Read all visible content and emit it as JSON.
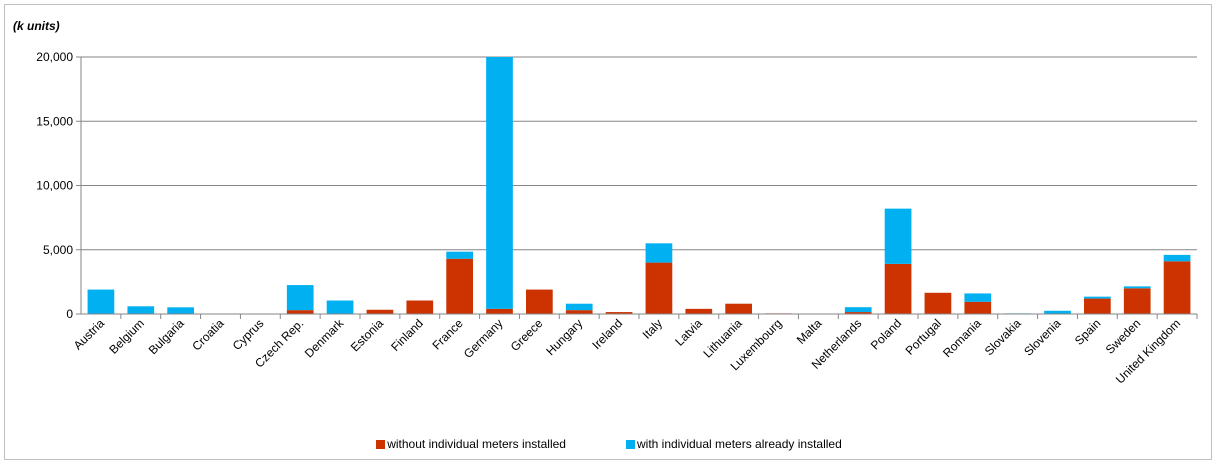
{
  "chart_data": {
    "type": "bar",
    "stacked": true,
    "unit_label": "(k units)",
    "categories": [
      "Austria",
      "Belgium",
      "Bulgaria",
      "Croatia",
      "Cyprus",
      "Czech Rep.",
      "Denmark",
      "Estonia",
      "Finland",
      "France",
      "Germany",
      "Greece",
      "Hungary",
      "Ireland",
      "Italy",
      "Latvia",
      "Lithuania",
      "Luxembourg",
      "Malta",
      "Netherlands",
      "Poland",
      "Portugal",
      "Romania",
      "Slovakia",
      "Slovenia",
      "Spain",
      "Sweden",
      "United Kingdom"
    ],
    "series": [
      {
        "name": "without individual meters installed",
        "color": "#cc3300",
        "values": [
          0,
          0,
          0,
          0,
          40,
          300,
          0,
          330,
          1050,
          4300,
          400,
          1900,
          300,
          150,
          4000,
          400,
          800,
          50,
          0,
          150,
          3900,
          1650,
          950,
          0,
          0,
          1200,
          2000,
          4100
        ]
      },
      {
        "name": "with individual meters already installed",
        "color": "#00b0f0",
        "values": [
          1900,
          600,
          520,
          0,
          0,
          1950,
          1050,
          0,
          0,
          550,
          19600,
          0,
          500,
          0,
          1500,
          0,
          0,
          0,
          0,
          380,
          4300,
          0,
          650,
          50,
          250,
          150,
          150,
          500
        ]
      }
    ],
    "ylim": [
      0,
      20000
    ],
    "yticks": [
      0,
      5000,
      10000,
      15000,
      20000
    ],
    "ytick_labels": [
      "0",
      "5,000",
      "10,000",
      "15,000",
      "20,000"
    ],
    "grid": true,
    "legend_position": "bottom"
  }
}
